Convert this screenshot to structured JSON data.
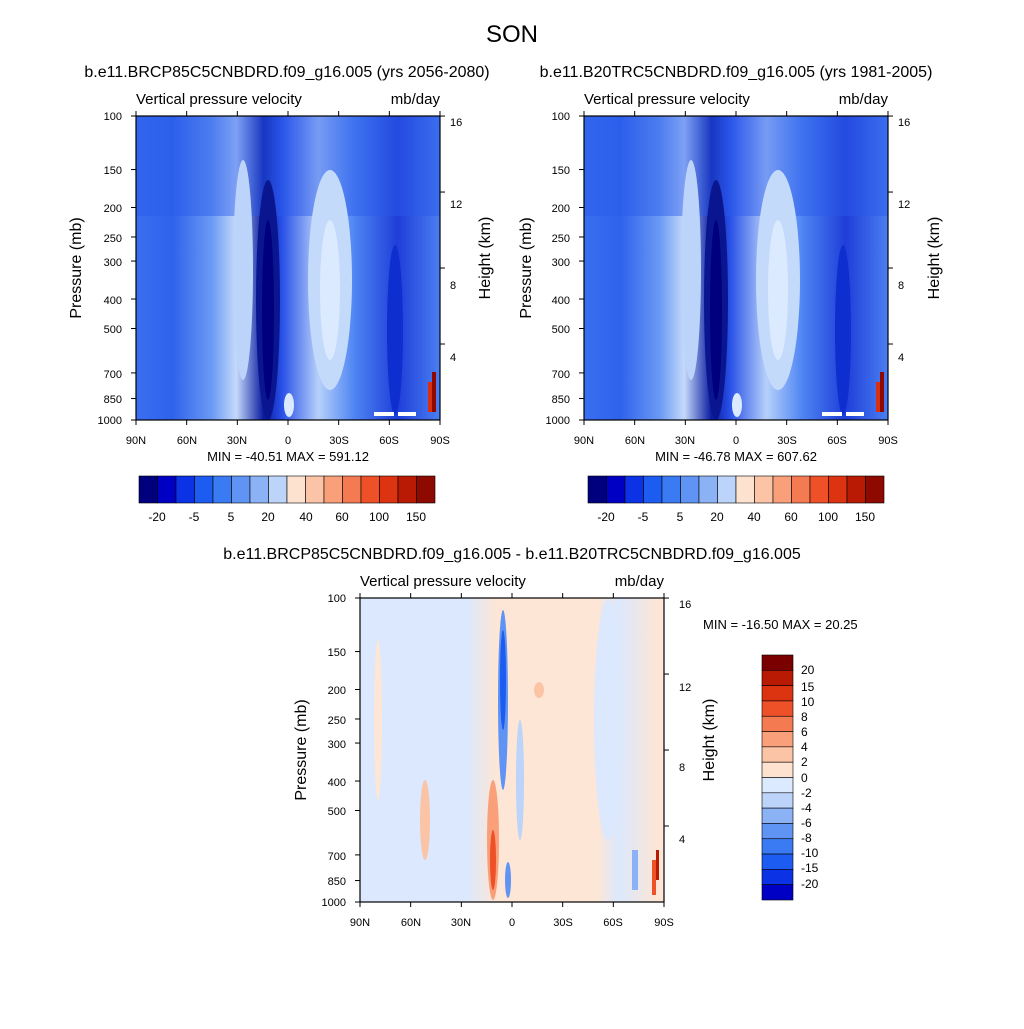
{
  "figure": {
    "title": "SON"
  },
  "colors": {
    "neg": [
      "#00007f",
      "#0000c4",
      "#0c32e6",
      "#1c5cf0",
      "#3a7af2",
      "#6094f4",
      "#8cb2f6",
      "#bcd4fa",
      "#dceaff"
    ],
    "pos": [
      "#fde2d0",
      "#fbc4a6",
      "#f9a07a",
      "#f47a52",
      "#ee5028",
      "#dc3310",
      "#b81a04",
      "#8e0a00",
      "#7a0000"
    ],
    "axis": "#000000",
    "background": "#ffffff"
  },
  "common": {
    "panel_title": "Vertical pressure velocity",
    "units": "mb/day",
    "ylabel": "Pressure (mb)",
    "ylabel_right": "Height (km)",
    "pressure_ticks": [
      "100",
      "150",
      "200",
      "250",
      "300",
      "400",
      "500",
      "700",
      "850",
      "1000"
    ],
    "height_ticks": [
      "16",
      "12",
      "8",
      "4"
    ],
    "lat_ticks": [
      "90N",
      "60N",
      "30N",
      "0",
      "30S",
      "60S",
      "90S"
    ]
  },
  "chart_data": [
    {
      "type": "heatmap",
      "title": "b.e11.BRCP85C5CNBDRD.f09_g16.005 (yrs 2056-2080)",
      "subtitle_left": "Vertical pressure velocity",
      "subtitle_right": "mb/day",
      "xlabel": "",
      "ylabel": "Pressure (mb)",
      "ylabel_right": "Height (km)",
      "x_ticks": [
        "90N",
        "60N",
        "30N",
        "0",
        "30S",
        "60S",
        "90S"
      ],
      "y_ticks": [
        "100",
        "150",
        "200",
        "250",
        "300",
        "400",
        "500",
        "700",
        "850",
        "1000"
      ],
      "y_ticks_right": [
        "16",
        "12",
        "8",
        "4"
      ],
      "log_y": true,
      "ylim": [
        1000,
        100
      ],
      "xlim": [
        90,
        -90
      ],
      "stats": "MIN = -40.51  MAX = 591.12",
      "colorbar_levels": [
        "-20",
        "-5",
        "5",
        "20",
        "40",
        "60",
        "100",
        "150"
      ]
    },
    {
      "type": "heatmap",
      "title": "b.e11.B20TRC5CNBDRD.f09_g16.005 (yrs 1981-2005)",
      "subtitle_left": "Vertical pressure velocity",
      "subtitle_right": "mb/day",
      "xlabel": "",
      "ylabel": "Pressure (mb)",
      "ylabel_right": "Height (km)",
      "x_ticks": [
        "90N",
        "60N",
        "30N",
        "0",
        "30S",
        "60S",
        "90S"
      ],
      "y_ticks": [
        "100",
        "150",
        "200",
        "250",
        "300",
        "400",
        "500",
        "700",
        "850",
        "1000"
      ],
      "y_ticks_right": [
        "16",
        "12",
        "8",
        "4"
      ],
      "log_y": true,
      "ylim": [
        1000,
        100
      ],
      "xlim": [
        90,
        -90
      ],
      "stats": "MIN = -46.78  MAX = 607.62",
      "colorbar_levels": [
        "-20",
        "-5",
        "5",
        "20",
        "40",
        "60",
        "100",
        "150"
      ]
    },
    {
      "type": "heatmap",
      "title": "b.e11.BRCP85C5CNBDRD.f09_g16.005 - b.e11.B20TRC5CNBDRD.f09_g16.005",
      "subtitle_left": "Vertical pressure velocity",
      "subtitle_right": "mb/day",
      "xlabel": "",
      "ylabel": "Pressure (mb)",
      "ylabel_right": "Height (km)",
      "x_ticks": [
        "90N",
        "60N",
        "30N",
        "0",
        "30S",
        "60S",
        "90S"
      ],
      "y_ticks": [
        "100",
        "150",
        "200",
        "250",
        "300",
        "400",
        "500",
        "700",
        "850",
        "1000"
      ],
      "y_ticks_right": [
        "16",
        "12",
        "8",
        "4"
      ],
      "log_y": true,
      "ylim": [
        1000,
        100
      ],
      "xlim": [
        90,
        -90
      ],
      "stats": "MIN = -16.50  MAX =  20.25",
      "colorbar_levels": [
        "20",
        "15",
        "10",
        "8",
        "6",
        "4",
        "2",
        "0",
        "-2",
        "-4",
        "-6",
        "-8",
        "-10",
        "-15",
        "-20"
      ]
    }
  ]
}
